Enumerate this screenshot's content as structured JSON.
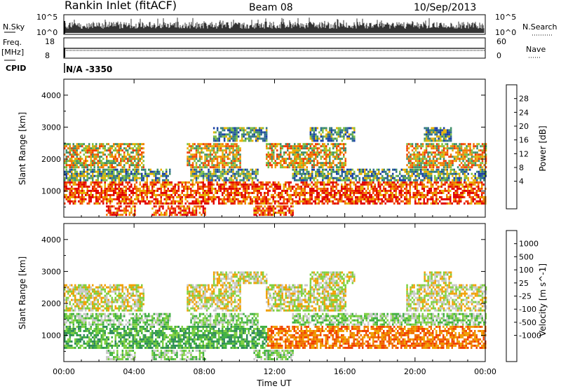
{
  "header": {
    "station": "Rankin Inlet (fitACF)",
    "beam": "Beam 08",
    "date": "10/Sep/2013"
  },
  "status_panels": {
    "nsky_label": "N.Sky",
    "nsky_ticks": [
      "10^5",
      "10^0"
    ],
    "nsearch_label": "N.Search",
    "nsearch_ticks": [
      "10^5",
      "10^0"
    ],
    "freq_label_1": "Freq.",
    "freq_label_2": "[MHz]",
    "freq_ticks": [
      "18",
      "8"
    ],
    "nave_label": "Nave",
    "nave_ticks": [
      "60",
      "0"
    ],
    "cpid_label": "CPID",
    "cpid_value": "N/A -3350"
  },
  "chart_data": [
    {
      "type": "heatmap",
      "name": "power",
      "ylabel": "Slant Range [km]",
      "ylim": [
        180,
        4500
      ],
      "yticks": [
        "1000",
        "2000",
        "3000",
        "4000"
      ],
      "colorbar_label": "Power [dB]",
      "colorbar_ticks": [
        "28",
        "24",
        "20",
        "16",
        "12",
        "8",
        "4"
      ],
      "colors": [
        "#0000ff",
        "#1a3fa6",
        "#2f6e8f",
        "#3f8f6a",
        "#7fc03f",
        "#e8b000",
        "#f07800",
        "#f03c00",
        "#e00000"
      ],
      "bands": [
        {
          "range": [
            180,
            550
          ],
          "hours": [
            [
              2.4,
              4.0
            ],
            [
              5.0,
              8.0
            ],
            [
              10.8,
              13.0
            ]
          ]
        },
        {
          "range": [
            550,
            1300
          ],
          "hours": [
            [
              0.0,
              24.0
            ]
          ]
        },
        {
          "range": [
            1300,
            1700
          ],
          "hours": [
            [
              0.0,
              6.0
            ],
            [
              7.2,
              11.0
            ],
            [
              13.0,
              24.0
            ]
          ]
        },
        {
          "range": [
            1700,
            2500
          ],
          "hours": [
            [
              0.0,
              4.5
            ],
            [
              7.0,
              10.0
            ],
            [
              11.5,
              16.0
            ],
            [
              19.5,
              24.0
            ]
          ]
        },
        {
          "range": [
            2500,
            3000
          ],
          "hours": [
            [
              8.5,
              11.5
            ],
            [
              14.0,
              16.5
            ],
            [
              20.5,
              22.0
            ]
          ]
        }
      ]
    },
    {
      "type": "heatmap",
      "name": "velocity",
      "ylabel": "Slant Range [km]",
      "ylim": [
        180,
        4500
      ],
      "yticks": [
        "1000",
        "2000",
        "3000",
        "4000"
      ],
      "colorbar_label": "Velocity [m s^-1]",
      "colorbar_ticks": [
        "1000",
        "500",
        "100",
        "25",
        "-25",
        "-100",
        "-500",
        "-1000"
      ],
      "colors": [
        "#1a3fc8",
        "#2a60b0",
        "#2f8a5a",
        "#3fb040",
        "#7fd040",
        "#c8c8c8",
        "#f0a000",
        "#f07000",
        "#f04000",
        "#e00000"
      ],
      "bands": [
        {
          "range": [
            180,
            550
          ],
          "hours": [
            [
              2.4,
              4.0
            ],
            [
              5.0,
              8.0
            ],
            [
              10.8,
              13.0
            ]
          ]
        },
        {
          "range": [
            550,
            1300
          ],
          "hours": [
            [
              0.0,
              24.0
            ]
          ]
        },
        {
          "range": [
            1300,
            1700
          ],
          "hours": [
            [
              0.0,
              6.0
            ],
            [
              7.2,
              11.0
            ],
            [
              13.0,
              24.0
            ]
          ]
        },
        {
          "range": [
            1700,
            2600
          ],
          "hours": [
            [
              0.0,
              4.5
            ],
            [
              7.0,
              10.0
            ],
            [
              11.5,
              16.0
            ],
            [
              19.5,
              24.0
            ]
          ]
        },
        {
          "range": [
            2600,
            3000
          ],
          "hours": [
            [
              8.5,
              11.5
            ],
            [
              14.0,
              16.5
            ],
            [
              20.5,
              22.0
            ]
          ]
        }
      ]
    }
  ],
  "time_axis": {
    "xlabel": "Time UT",
    "ticks": [
      "00:00",
      "04:00",
      "08:00",
      "12:00",
      "16:00",
      "20:00",
      "00:00"
    ]
  }
}
